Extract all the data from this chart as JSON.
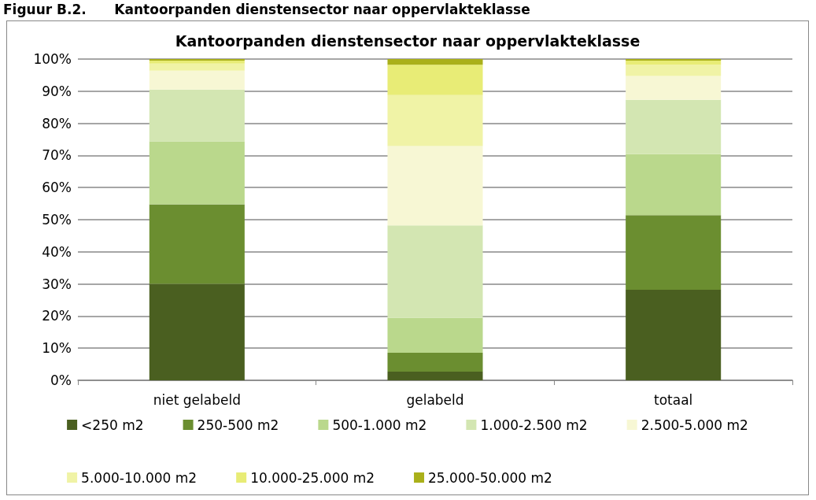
{
  "chart_data": {
    "type": "bar",
    "stacked": true,
    "title": "Kantoorpanden dienstensector naar oppervlakteklasse",
    "annotations": [
      "Figuur B.2.      Kantoorpanden dienstensector naar oppervlakteklasse"
    ],
    "categories": [
      "niet gelabeld",
      "gelabeld",
      "totaal"
    ],
    "series": [
      {
        "name": "<250 m2",
        "color": "#4a5f20",
        "values": [
          30,
          2.7,
          28.2
        ]
      },
      {
        "name": "250-500 m2",
        "color": "#6b8e30",
        "values": [
          24.8,
          5.9,
          23.2
        ]
      },
      {
        "name": "500-1.000 m2",
        "color": "#bad88c",
        "values": [
          19.6,
          10.9,
          19.0
        ]
      },
      {
        "name": "1.000-2.500 m2",
        "color": "#d3e6b2",
        "values": [
          16.1,
          28.7,
          16.9
        ]
      },
      {
        "name": "2.500-5.000 m2",
        "color": "#f7f7d4",
        "values": [
          5.9,
          24.7,
          7.4
        ]
      },
      {
        "name": "5.000-10.000 m2",
        "color": "#f0f3a6",
        "values": [
          2.2,
          15.9,
          3.5
        ]
      },
      {
        "name": "10.000-25.000 m2",
        "color": "#e8ec76",
        "values": [
          0.9,
          9.4,
          1.3
        ]
      },
      {
        "name": "25.000-50.000 m2",
        "color": "#aab01a",
        "values": [
          0.5,
          1.8,
          0.5
        ]
      }
    ],
    "ylim": [
      0,
      100
    ],
    "yticks": [
      {
        "value": 0,
        "label": "0%"
      },
      {
        "value": 10,
        "label": "10%"
      },
      {
        "value": 20,
        "label": "20%"
      },
      {
        "value": 30,
        "label": "30%"
      },
      {
        "value": 40,
        "label": "40%"
      },
      {
        "value": 50,
        "label": "50%"
      },
      {
        "value": 60,
        "label": "60%"
      },
      {
        "value": 70,
        "label": "70%"
      },
      {
        "value": 80,
        "label": "80%"
      },
      {
        "value": 90,
        "label": "90%"
      },
      {
        "value": 100,
        "label": "100%"
      }
    ],
    "grid": "y",
    "legend": "bottom"
  }
}
